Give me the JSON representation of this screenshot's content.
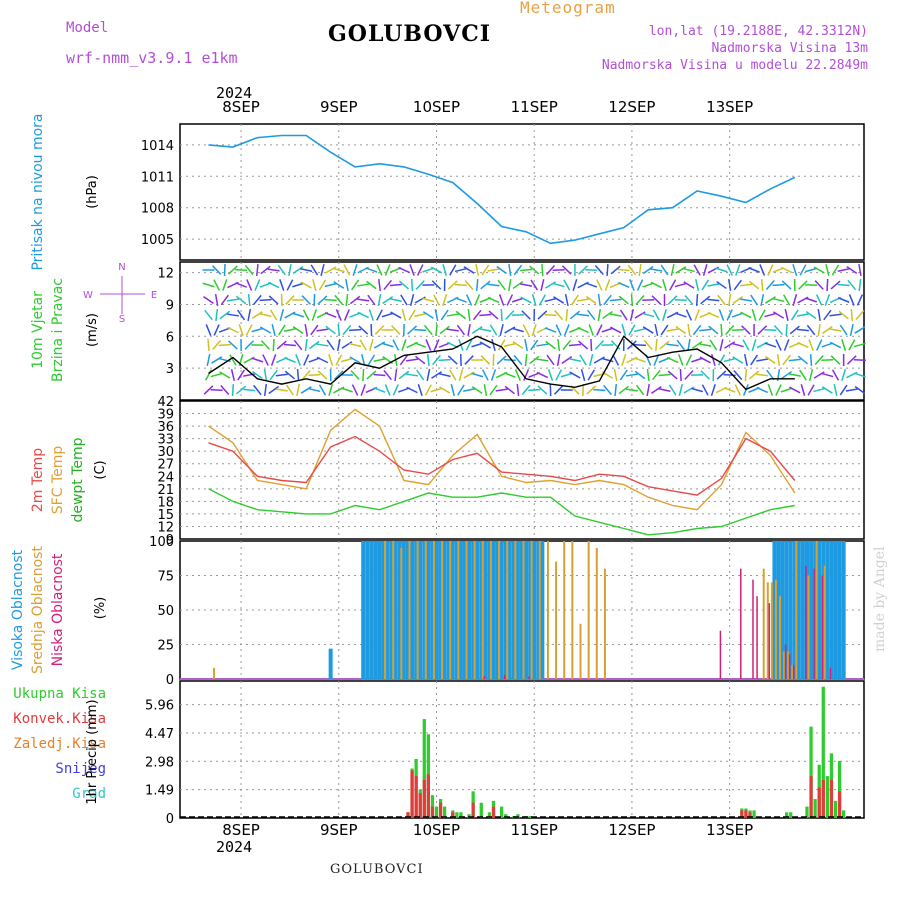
{
  "header": {
    "meteogram_label": "Meteogram",
    "model_label": "Model",
    "model_name": "wrf-nmm_v3.9.1 e1km",
    "station": "GOLUBOVCI",
    "lonlat": "lon,lat (19.2188E, 42.3312N)",
    "altitude": "Nadmorska Visina 13m",
    "model_altitude": "Nadmorska Visina u modelu 22.2849m",
    "footer_station": "GOLUBOVCI",
    "watermark": "made by Angel",
    "year": "2024"
  },
  "colors": {
    "pressure": "#1e9be0",
    "wind_speed": "#000000",
    "wind_gust": "#e03c3c",
    "t2m": "#e84a4a",
    "sfc": "#e0a030",
    "dewpt": "#2ecc2e",
    "cloud_high": "#1e9be0",
    "cloud_mid": "#d8a030",
    "cloud_low": "#d0207a",
    "precip_total": "#2ecc2e",
    "precip_conv": "#e03c3c",
    "precip_snow": "#4040e0",
    "label_purple": "#b24fd8",
    "label_orange": "#e8a040"
  },
  "chart_data": [
    {
      "type": "line",
      "panel": "pressure",
      "ylabel": [
        "Pritisak na nivou mora",
        "(hPa)"
      ],
      "yticks": [
        1005,
        1008,
        1011,
        1014
      ],
      "ylim": [
        1003,
        1016
      ],
      "xticks": [
        "8SEP",
        "9SEP",
        "10SEP",
        "11SEP",
        "12SEP",
        "13SEP"
      ],
      "x_hours": [
        0,
        6,
        12,
        18,
        24,
        30,
        36,
        42,
        48,
        54,
        60,
        66,
        72,
        78,
        84,
        90,
        96,
        102,
        108,
        114,
        120,
        126,
        132,
        138,
        144
      ],
      "series": [
        {
          "values": [
            1014.0,
            1013.8,
            1014.7,
            1014.9,
            1014.9,
            1013.3,
            1011.9,
            1012.2,
            1011.9,
            1011.2,
            1010.4,
            1008.4,
            1006.2,
            1005.7,
            1004.6,
            1004.9,
            1005.5,
            1006.1,
            1007.8,
            1008.0,
            1009.6,
            1009.1,
            1008.5,
            1009.8,
            1010.9
          ]
        }
      ]
    },
    {
      "type": "line",
      "panel": "wind",
      "ylabel": [
        "10m Vjetar",
        "Brzina i Pravac",
        "(m/s)"
      ],
      "compass": {
        "n": "N",
        "s": "S",
        "e": "E",
        "w": "W"
      },
      "yticks": [
        3,
        6,
        9,
        12
      ],
      "ylim": [
        0,
        13
      ],
      "x_hours": [
        0,
        6,
        12,
        18,
        24,
        30,
        36,
        42,
        48,
        54,
        60,
        66,
        72,
        78,
        84,
        90,
        96,
        102,
        108,
        114,
        120,
        126,
        132,
        138,
        144
      ],
      "series": [
        {
          "values": [
            2.5,
            4.0,
            2.0,
            1.5,
            2.0,
            1.5,
            3.5,
            3.0,
            4.2,
            4.5,
            4.8,
            6.0,
            5.0,
            2.0,
            1.5,
            1.2,
            1.8,
            6.0,
            4.0,
            4.5,
            4.8,
            3.5,
            1.0,
            2.0,
            2.0
          ]
        }
      ]
    },
    {
      "type": "line",
      "panel": "temperature",
      "ylabel": [
        "2m Temp",
        "SFC Temp",
        "dewpt Temp",
        "(C)"
      ],
      "yticks": [
        9,
        12,
        15,
        18,
        21,
        24,
        27,
        30,
        33,
        36,
        39,
        42
      ],
      "ylim": [
        9,
        42
      ],
      "x_hours": [
        0,
        6,
        12,
        18,
        24,
        30,
        36,
        42,
        48,
        54,
        60,
        66,
        72,
        78,
        84,
        90,
        96,
        102,
        108,
        114,
        120,
        126,
        132,
        138,
        144
      ],
      "series": [
        {
          "name": "2m Temp",
          "values": [
            32,
            30,
            24,
            23,
            22.5,
            31,
            33.5,
            30,
            25.5,
            24.5,
            28,
            29.5,
            25,
            24.5,
            24,
            23,
            24.5,
            24,
            21.5,
            20.5,
            19.5,
            23.5,
            33,
            30,
            23
          ]
        },
        {
          "name": "SFC Temp",
          "values": [
            36,
            32,
            23,
            22,
            21,
            35,
            40,
            36,
            23,
            22,
            29,
            34,
            24,
            22.5,
            23,
            22,
            23,
            22,
            19,
            17,
            16,
            22,
            34.5,
            29,
            20
          ]
        },
        {
          "name": "dewpt Temp",
          "values": [
            21,
            18,
            16,
            15.5,
            15,
            15,
            17,
            16,
            18,
            20,
            19,
            19,
            20,
            19,
            19,
            14.5,
            13,
            11.5,
            10,
            10.5,
            11.5,
            12,
            14,
            16,
            17
          ]
        }
      ]
    },
    {
      "type": "bar",
      "panel": "cloud",
      "ylabel": [
        "Visoka Oblacnost",
        "Srednja Oblacnost",
        "Niska Oblacnost",
        "(%)"
      ],
      "yticks": [
        0,
        25,
        50,
        75,
        100
      ],
      "ylim": [
        0,
        100
      ],
      "series": [
        {
          "name": "Visoka Oblacnost",
          "x_hours": [
            30,
            31,
            38,
            39,
            40,
            41,
            42,
            43,
            44,
            45,
            46,
            47,
            48,
            49,
            50,
            51,
            52,
            53,
            54,
            55,
            56,
            57,
            58,
            59,
            60,
            61,
            62,
            63,
            64,
            65,
            66,
            67,
            68,
            69,
            70,
            71,
            72,
            73,
            74,
            75,
            76,
            77,
            78,
            79,
            80,
            81,
            82,
            139,
            140,
            141,
            142,
            143,
            144,
            145,
            146,
            147,
            148,
            149,
            150,
            151,
            152,
            153,
            154,
            155,
            156
          ],
          "values": [
            22,
            0,
            100,
            100,
            100,
            100,
            100,
            100,
            100,
            100,
            100,
            100,
            100,
            100,
            100,
            100,
            100,
            100,
            100,
            100,
            100,
            100,
            100,
            100,
            100,
            100,
            100,
            100,
            100,
            100,
            100,
            100,
            100,
            100,
            100,
            100,
            100,
            100,
            100,
            100,
            100,
            100,
            100,
            100,
            100,
            100,
            100,
            100,
            100,
            100,
            100,
            100,
            100,
            100,
            100,
            100,
            100,
            100,
            100,
            100,
            100,
            100,
            100,
            100,
            100
          ]
        },
        {
          "name": "Srednja Oblacnost",
          "x_hours": [
            1,
            43,
            45,
            47,
            49,
            51,
            53,
            55,
            57,
            59,
            61,
            63,
            65,
            67,
            69,
            71,
            73,
            75,
            77,
            79,
            81,
            83,
            85,
            87,
            89,
            91,
            93,
            95,
            97,
            136,
            137,
            138,
            139,
            140,
            141,
            142,
            143,
            144,
            147,
            149,
            151
          ],
          "values": [
            8,
            100,
            100,
            95,
            100,
            100,
            100,
            100,
            100,
            100,
            100,
            100,
            100,
            100,
            100,
            100,
            100,
            100,
            100,
            100,
            100,
            100,
            85,
            100,
            100,
            40,
            100,
            95,
            80,
            80,
            70,
            70,
            72,
            60,
            20,
            20,
            10,
            100,
            75,
            100,
            82
          ]
        },
        {
          "name": "Niska Oblacnost",
          "x_hours": [
            67,
            72,
            78,
            125,
            130,
            133,
            134,
            137,
            141,
            142,
            143,
            146,
            148,
            150,
            152
          ],
          "values": [
            2,
            3,
            2,
            35,
            80,
            72,
            60,
            55,
            25,
            18,
            10,
            82,
            80,
            75,
            8
          ]
        }
      ]
    },
    {
      "type": "bar",
      "panel": "precip",
      "ylabel": [
        "1hr Precip (mm)"
      ],
      "legend": [
        "Ukupna Kisa",
        "Konvek.Kisa",
        "Zaledj.Kisa",
        "Snijeg",
        "Grad"
      ],
      "yticks": [
        0,
        1.49,
        2.98,
        4.47,
        5.96
      ],
      "ylim": [
        0,
        7.2
      ],
      "xticks": [
        "8SEP",
        "9SEP",
        "10SEP",
        "11SEP",
        "12SEP",
        "13SEP"
      ],
      "series": [
        {
          "name": "Ukupna Kisa",
          "x_hours": [
            49,
            50,
            51,
            52,
            53,
            54,
            55,
            56,
            57,
            58,
            60,
            61,
            62,
            64,
            65,
            67,
            69,
            70,
            72,
            73,
            75,
            76,
            78,
            79,
            131,
            132,
            133,
            134,
            142,
            143,
            147,
            148,
            149,
            150,
            151,
            152,
            153,
            154,
            155,
            156
          ],
          "values": [
            0.3,
            2.6,
            3.1,
            1.5,
            5.2,
            4.4,
            1.2,
            0.6,
            1.0,
            0.6,
            0.4,
            0.3,
            0.3,
            0.2,
            1.4,
            0.8,
            0.3,
            0.9,
            0.6,
            0.2,
            0.1,
            0.2,
            0.1,
            0.1,
            0.5,
            0.5,
            0.4,
            0.4,
            0.3,
            0.3,
            0.6,
            4.8,
            1.0,
            2.8,
            6.9,
            2.2,
            3.4,
            0.9,
            3.0,
            0.4
          ]
        },
        {
          "name": "Konvek.Kisa",
          "x_hours": [
            49,
            50,
            51,
            52,
            53,
            54,
            55,
            57,
            60,
            65,
            70,
            131,
            132,
            133,
            148,
            150,
            151,
            153,
            155
          ],
          "values": [
            0.3,
            2.5,
            2.2,
            1.3,
            2.0,
            2.3,
            0.6,
            0.8,
            0.3,
            0.8,
            0.6,
            0.4,
            0.4,
            0.3,
            2.2,
            1.6,
            2.0,
            2.0,
            1.4
          ]
        }
      ]
    }
  ]
}
